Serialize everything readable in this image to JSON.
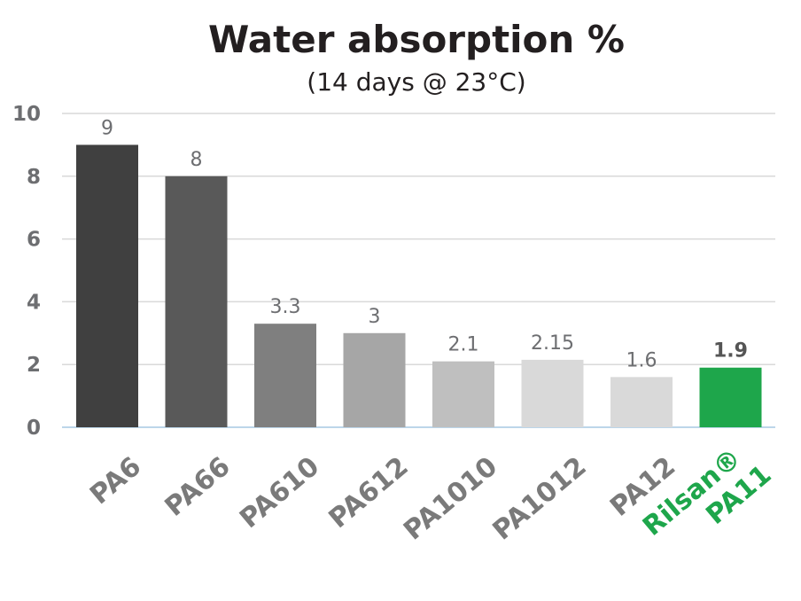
{
  "chart_data": {
    "type": "bar",
    "title": "Water absorption %",
    "subtitle": "(14 days @ 23°C)",
    "categories": [
      "PA6",
      "PA66",
      "PA610",
      "PA612",
      "PA1010",
      "PA1012",
      "PA12",
      "Rilsan® PA11"
    ],
    "category_lines": [
      [
        "PA6"
      ],
      [
        "PA66"
      ],
      [
        "PA610"
      ],
      [
        "PA612"
      ],
      [
        "PA1010"
      ],
      [
        "PA1012"
      ],
      [
        "PA12"
      ],
      [
        "Rilsan®",
        "PA11"
      ]
    ],
    "values": [
      9,
      8,
      3.3,
      3,
      2.1,
      2.15,
      1.6,
      1.9
    ],
    "value_labels": [
      "9",
      "8",
      "3.3",
      "3",
      "2.1",
      "2.15",
      "1.6",
      "1.9"
    ],
    "bar_colors": [
      "#404040",
      "#595959",
      "#7f7f7f",
      "#a6a6a6",
      "#bfbfbf",
      "#d9d9d9",
      "#d9d9d9",
      "#1ea64b"
    ],
    "highlight_index": 7,
    "highlight_color": "#1ea64b",
    "ylim": [
      0,
      10
    ],
    "yticks": [
      0,
      2,
      4,
      6,
      8,
      10
    ],
    "grid": true,
    "xlabel": "",
    "ylabel": ""
  }
}
